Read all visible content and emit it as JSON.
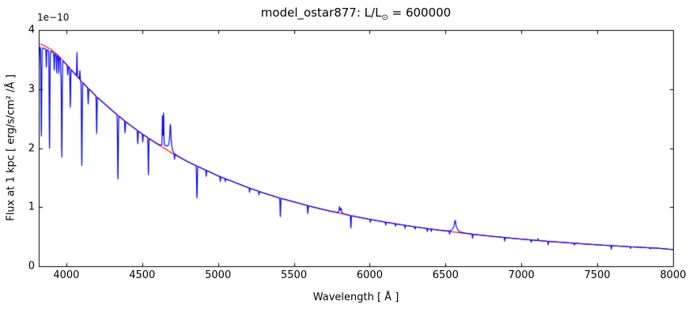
{
  "title": {
    "prefix": "model_ostar877: L/L",
    "sub": "⊙",
    "suffix": " = 600000",
    "full": "model_ostar877: L/L⊙ = 600000"
  },
  "axes": {
    "xlabel": "Wavelength [ Å ]",
    "ylabel": "Flux at 1 kpc [ erg/s/cm² /Å ]",
    "offset_text": "1e−10"
  },
  "colors": {
    "spectrum": "#0000ff",
    "continuum": "#ff0000",
    "frame": "#000000",
    "background": "#ffffff"
  },
  "chart_data": {
    "type": "line",
    "title": "model_ostar877: L/L⊙ = 600000",
    "xlabel": "Wavelength [ Å ]",
    "ylabel": "Flux at 1 kpc [ erg/s/cm² /Å ]",
    "y_offset_factor": "1e−10",
    "xlim": [
      3818,
      8000
    ],
    "ylim": [
      0,
      4
    ],
    "x_ticks": [
      4000,
      4500,
      5000,
      5500,
      6000,
      6500,
      7000,
      7500,
      8000
    ],
    "y_ticks": [
      0,
      1,
      2,
      3,
      4
    ],
    "grid": false,
    "legend": null,
    "tick_direction": "in",
    "series": [
      {
        "name": "model spectrum",
        "color": "#0000ff",
        "description": "synthetic stellar spectrum with absorption and emission lines"
      },
      {
        "name": "continuum fit",
        "color": "#ff0000",
        "description": "smooth continuum passing under/over the line features"
      }
    ],
    "continuum_anchors": [
      [
        3818,
        3.77
      ],
      [
        3850,
        3.74
      ],
      [
        3900,
        3.67
      ],
      [
        3950,
        3.56
      ],
      [
        4000,
        3.42
      ],
      [
        4100,
        3.13
      ],
      [
        4200,
        2.87
      ],
      [
        4300,
        2.64
      ],
      [
        4400,
        2.43
      ],
      [
        4500,
        2.24
      ],
      [
        4600,
        2.07
      ],
      [
        4700,
        1.91
      ],
      [
        4800,
        1.77
      ],
      [
        4900,
        1.65
      ],
      [
        5000,
        1.53
      ],
      [
        5100,
        1.43
      ],
      [
        5200,
        1.33
      ],
      [
        5300,
        1.24
      ],
      [
        5400,
        1.16
      ],
      [
        5500,
        1.09
      ],
      [
        5600,
        1.02
      ],
      [
        5700,
        0.956
      ],
      [
        5800,
        0.898
      ],
      [
        5900,
        0.844
      ],
      [
        6000,
        0.794
      ],
      [
        6100,
        0.748
      ],
      [
        6200,
        0.706
      ],
      [
        6300,
        0.666
      ],
      [
        6400,
        0.63
      ],
      [
        6500,
        0.596
      ],
      [
        6600,
        0.565
      ],
      [
        6700,
        0.535
      ],
      [
        6800,
        0.508
      ],
      [
        6900,
        0.483
      ],
      [
        7000,
        0.459
      ],
      [
        7100,
        0.437
      ],
      [
        7200,
        0.417
      ],
      [
        7300,
        0.398
      ],
      [
        7400,
        0.38
      ],
      [
        7500,
        0.363
      ],
      [
        7600,
        0.347
      ],
      [
        7700,
        0.332
      ],
      [
        7800,
        0.318
      ],
      [
        7900,
        0.305
      ],
      [
        8000,
        0.282
      ]
    ],
    "continuum_fit_start": 3826,
    "spectral_lines": {
      "absorption": [
        [
          3819,
          -0.45,
          2,
          "g"
        ],
        [
          3835,
          -1.5,
          2.2,
          "g"
        ],
        [
          3868,
          -0.3,
          1.5,
          "g"
        ],
        [
          3889,
          -1.65,
          2.2,
          "g"
        ],
        [
          3920,
          -0.28,
          1.5,
          "g"
        ],
        [
          3936,
          -0.3,
          1.5,
          "g"
        ],
        [
          3950,
          -0.28,
          1.5,
          "g"
        ],
        [
          3964,
          -0.25,
          1.5,
          "g"
        ],
        [
          3970,
          -1.65,
          2.2,
          "g"
        ],
        [
          4009,
          -0.15,
          1.5,
          "g"
        ],
        [
          4026,
          -0.65,
          2,
          "g"
        ],
        [
          4102,
          -1.42,
          2.2,
          "g"
        ],
        [
          4144,
          -0.27,
          1.8,
          "g"
        ],
        [
          4200,
          -0.62,
          1.8,
          "g"
        ],
        [
          4340,
          -1.08,
          2.2,
          "g"
        ],
        [
          4387,
          -0.2,
          1.8,
          "g"
        ],
        [
          4471,
          -0.22,
          1.8,
          "g"
        ],
        [
          4504,
          -0.13,
          1.5,
          "g"
        ],
        [
          4541,
          -0.62,
          1.8,
          "g"
        ],
        [
          4713,
          -0.1,
          1.5,
          "g"
        ],
        [
          4861,
          -0.54,
          2.2,
          "g"
        ],
        [
          4922,
          -0.1,
          1.5,
          "g"
        ],
        [
          5015,
          -0.08,
          1.5,
          "g"
        ],
        [
          5048,
          -0.05,
          1.5,
          "g"
        ],
        [
          5208,
          -0.07,
          1.5,
          "g"
        ],
        [
          5270,
          -0.06,
          1.5,
          "g"
        ],
        [
          5411,
          -0.31,
          1.8,
          "g"
        ],
        [
          5592,
          -0.13,
          1.8,
          "g"
        ],
        [
          5876,
          -0.21,
          1.8,
          "g"
        ],
        [
          6004,
          -0.05,
          1.5,
          "g"
        ],
        [
          6106,
          -0.05,
          1.5,
          "g"
        ],
        [
          6170,
          -0.04,
          1.5,
          "g"
        ],
        [
          6233,
          -0.05,
          1.5,
          "g"
        ],
        [
          6300,
          -0.04,
          1.5,
          "g"
        ],
        [
          6380,
          -0.05,
          1.5,
          "g"
        ],
        [
          6406,
          -0.04,
          1.5,
          "g"
        ],
        [
          6527,
          -0.06,
          1.5,
          "g"
        ],
        [
          6678,
          -0.07,
          1.5,
          "g"
        ],
        [
          6890,
          -0.06,
          1.5,
          "g"
        ],
        [
          7065,
          -0.04,
          1.5,
          "g"
        ],
        [
          7177,
          -0.06,
          1.5,
          "g"
        ],
        [
          7350,
          -0.03,
          1.5,
          "g"
        ],
        [
          7593,
          -0.06,
          1.5,
          "g"
        ],
        [
          7720,
          -0.03,
          1.5,
          "g"
        ],
        [
          7850,
          -0.02,
          1.5,
          "g"
        ]
      ],
      "emission": [
        [
          4070,
          0.4,
          1.5,
          "g"
        ],
        [
          4089,
          0.15,
          1.5,
          "g"
        ],
        [
          4634,
          0.5,
          1.8,
          "g"
        ],
        [
          4641,
          0.55,
          1.8,
          "g"
        ],
        [
          4686,
          0.44,
          5,
          "l"
        ],
        [
          5801,
          0.07,
          1.5,
          "g"
        ],
        [
          5806,
          0.06,
          8,
          "l"
        ],
        [
          5812,
          0.05,
          1.5,
          "g"
        ],
        [
          6563,
          0.15,
          12,
          "l"
        ],
        [
          6563,
          0.05,
          2.5,
          "g"
        ],
        [
          7110,
          0.03,
          2,
          "g"
        ]
      ],
      "broad_adjustments": [
        [
          3830,
          -0.05,
          70,
          "g"
        ],
        [
          4660,
          0.05,
          25,
          "g"
        ]
      ]
    }
  }
}
